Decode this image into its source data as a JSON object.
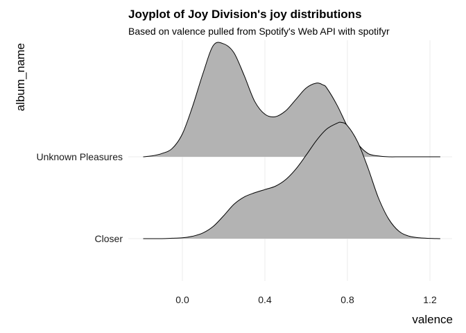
{
  "chart_data": {
    "type": "ridgeline",
    "title": "Joyplot of Joy Division's joy distributions",
    "subtitle": "Based on valence pulled from Spotify's Web API with spotifyr",
    "xlabel": "valence",
    "ylabel": "album_name",
    "xlim": [
      -0.25,
      1.29
    ],
    "x_ticks": [
      0.0,
      0.4,
      0.8,
      1.2
    ],
    "x_tick_labels": [
      "0.0",
      "0.4",
      "0.8",
      "1.2"
    ],
    "categories": [
      "Closer",
      "Unknown Pleasures"
    ],
    "grid": "x-major only",
    "fill_color": "#b3b3b3",
    "line_color": "#000000",
    "series": [
      {
        "name": "Closer",
        "x": [
          -0.19,
          -0.1,
          -0.05,
          0.0,
          0.05,
          0.1,
          0.15,
          0.2,
          0.25,
          0.3,
          0.35,
          0.4,
          0.45,
          0.5,
          0.55,
          0.6,
          0.65,
          0.7,
          0.75,
          0.77,
          0.8,
          0.85,
          0.9,
          0.95,
          1.0,
          1.05,
          1.1,
          1.15,
          1.2,
          1.25
        ],
        "y": [
          0.0,
          0.0,
          0.005,
          0.01,
          0.03,
          0.07,
          0.15,
          0.28,
          0.42,
          0.51,
          0.56,
          0.6,
          0.64,
          0.72,
          0.85,
          1.02,
          1.2,
          1.34,
          1.41,
          1.42,
          1.38,
          1.18,
          0.86,
          0.5,
          0.24,
          0.09,
          0.03,
          0.01,
          0.003,
          0.0
        ]
      },
      {
        "name": "Unknown Pleasures",
        "x": [
          -0.19,
          -0.15,
          -0.1,
          -0.05,
          0.0,
          0.05,
          0.1,
          0.15,
          0.2,
          0.25,
          0.3,
          0.35,
          0.4,
          0.45,
          0.5,
          0.55,
          0.6,
          0.65,
          0.68,
          0.7,
          0.75,
          0.8,
          0.85,
          0.9,
          0.95,
          1.0,
          1.05,
          1.1,
          1.2,
          1.25
        ],
        "y": [
          0.0,
          0.01,
          0.04,
          0.1,
          0.28,
          0.62,
          1.02,
          1.36,
          1.38,
          1.27,
          0.99,
          0.68,
          0.52,
          0.49,
          0.56,
          0.7,
          0.84,
          0.9,
          0.88,
          0.84,
          0.63,
          0.37,
          0.16,
          0.04,
          0.01,
          0.0,
          0.0,
          0.0,
          0.0,
          0.0
        ]
      }
    ]
  }
}
